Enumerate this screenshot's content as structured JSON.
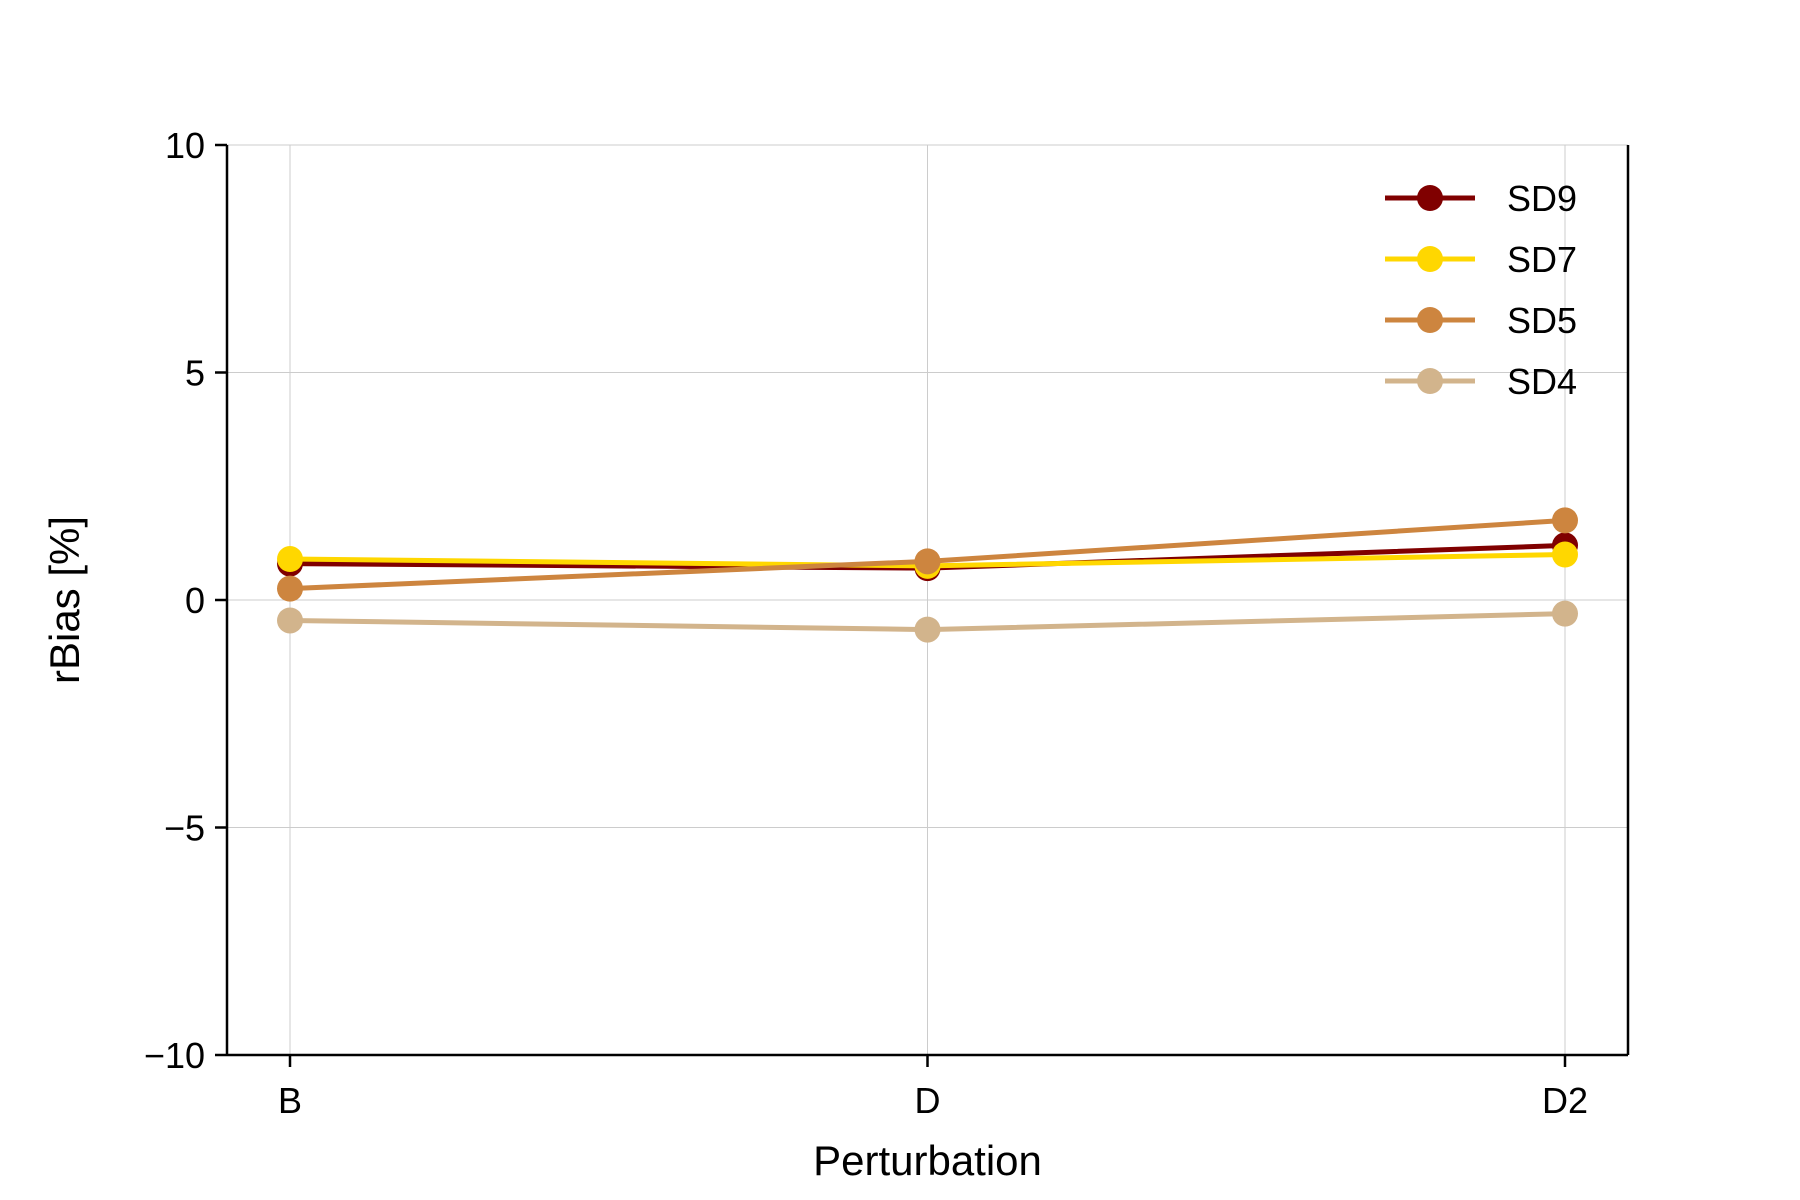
{
  "chart_data": {
    "type": "line",
    "categories": [
      "B",
      "D",
      "D2"
    ],
    "xlabel": "Perturbation",
    "ylabel": "rBias [%]",
    "ylim": [
      -10,
      10
    ],
    "yticks": [
      -10,
      -5,
      0,
      5,
      10
    ],
    "ytick_labels": [
      "−10",
      "−5",
      "0",
      "5",
      "10"
    ],
    "grid": true,
    "legend_position": "top-right",
    "series": [
      {
        "name": "SD9",
        "color": "#800000",
        "values": [
          0.8,
          0.7,
          1.2
        ]
      },
      {
        "name": "SD7",
        "color": "#FFD700",
        "values": [
          0.9,
          0.75,
          1.0
        ]
      },
      {
        "name": "SD5",
        "color": "#CD853F",
        "values": [
          0.25,
          0.85,
          1.75
        ]
      },
      {
        "name": "SD4",
        "color": "#D2B48C",
        "values": [
          -0.45,
          -0.65,
          -0.3
        ]
      }
    ]
  }
}
